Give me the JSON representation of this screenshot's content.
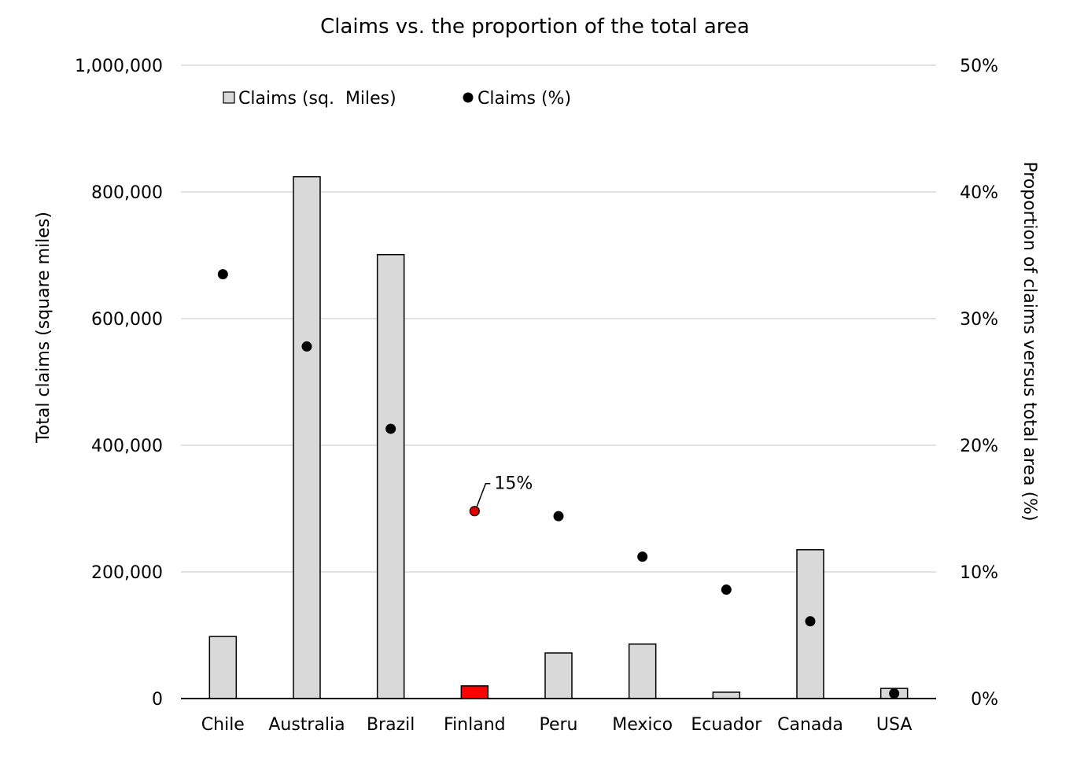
{
  "chart_data": {
    "type": "bar+scatter",
    "title": "Claims vs. the proportion of the total area",
    "categories": [
      "Chile",
      "Australia",
      "Brazil",
      "Finland",
      "Peru",
      "Mexico",
      "Ecuador",
      "Canada",
      "USA"
    ],
    "series": [
      {
        "name": "Claims (sq.  Miles)",
        "kind": "bar",
        "axis": "left",
        "values": [
          98000,
          824000,
          701000,
          20000,
          72000,
          86000,
          10000,
          235000,
          16000
        ]
      },
      {
        "name": "Claims (%)",
        "kind": "scatter",
        "axis": "right",
        "values": [
          33.5,
          27.8,
          21.3,
          14.8,
          14.4,
          11.2,
          8.6,
          6.1,
          0.4
        ]
      }
    ],
    "highlight": {
      "category": "Finland",
      "bar_color": "#ff0000",
      "dot_color": "#e00000"
    },
    "colors": {
      "bar": "#d9d9d9",
      "dot": "#000000"
    },
    "annotation": {
      "category": "Finland",
      "text": "15%"
    },
    "ylabel": "Total claims (square miles)",
    "y2label": "Proportion of claims versus total area (%)",
    "ylim": [
      0,
      1000000
    ],
    "y2lim": [
      0,
      50
    ],
    "yticks": [
      "0",
      "200,000",
      "400,000",
      "600,000",
      "800,000",
      "1,000,000"
    ],
    "y2ticks": [
      "0%",
      "10%",
      "20%",
      "30%",
      "40%",
      "50%"
    ],
    "grid": true,
    "legend_position": "top-left"
  }
}
